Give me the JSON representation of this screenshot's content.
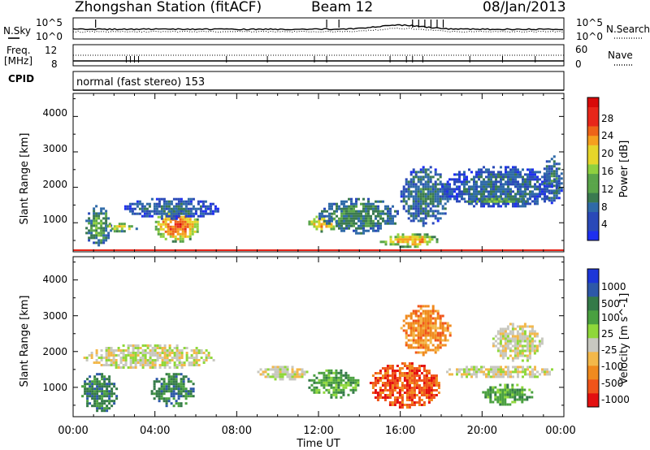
{
  "header": {
    "station": "Zhongshan Station (fitACF)",
    "beam": "Beam 12",
    "date": "08/Jan/2013"
  },
  "status_panel": {
    "nsky_label": "N.Sky",
    "nsearch_label": "N.Search",
    "noise_ticks_left": [
      "10^5",
      "10^0"
    ],
    "noise_ticks_right": [
      "10^5",
      "10^0"
    ],
    "freq_label_1": "Freq.",
    "freq_label_2": "[MHz]",
    "freq_ticks": [
      "12",
      "8"
    ],
    "nave_label": "Nave",
    "nave_ticks": [
      "60",
      "0"
    ],
    "cpid_label": "CPID",
    "cpid_value": "normal (fast stereo) 153"
  },
  "colors": {
    "power": [
      "#1e2ff0",
      "#2a49b8",
      "#2f6aa8",
      "#3a7a50",
      "#5aa54a",
      "#8fd03f",
      "#e6d62a",
      "#f5a01e",
      "#ee6418",
      "#e8261a",
      "#d80a0a"
    ],
    "velocity": [
      "#e31010",
      "#f0541a",
      "#f08a1e",
      "#f3b84a",
      "#c8c8c0",
      "#8fd83a",
      "#4aa040",
      "#347a48",
      "#2d58a8",
      "#1c36d8"
    ],
    "ground_scatter": "#c8c8c0"
  },
  "chart_data": [
    {
      "type": "heatmap",
      "title": "",
      "xlabel": "Time UT",
      "ylabel": "Slant Range [km]",
      "x_ticks": [
        "00:00",
        "04:00",
        "08:00",
        "12:00",
        "16:00",
        "20:00",
        "00:00"
      ],
      "y_ticks": [
        "1000",
        "2000",
        "3000",
        "4000"
      ],
      "ylim": [
        180,
        4650
      ],
      "colorbar_label": "Power [dB]",
      "colorbar_ticks": [
        "4",
        "8",
        "12",
        "16",
        "20",
        "24",
        "28"
      ],
      "clim": [
        0,
        30
      ],
      "regions": [
        {
          "t": [
            0.6,
            1.9
          ],
          "r": [
            300,
            1500
          ],
          "level": 12
        },
        {
          "t": [
            1.5,
            3.2
          ],
          "r": [
            750,
            1000
          ],
          "level": 18
        },
        {
          "t": [
            4.0,
            6.2
          ],
          "r": [
            450,
            1400
          ],
          "level": 26
        },
        {
          "t": [
            2.5,
            7.2
          ],
          "r": [
            1100,
            1700
          ],
          "level": 6
        },
        {
          "t": [
            11.5,
            13.0
          ],
          "r": [
            750,
            1200
          ],
          "level": 22
        },
        {
          "t": [
            12.0,
            16.0
          ],
          "r": [
            700,
            1700
          ],
          "level": 10
        },
        {
          "t": [
            15.0,
            18.0
          ],
          "r": [
            300,
            700
          ],
          "level": 22
        },
        {
          "t": [
            16.0,
            18.5
          ],
          "r": [
            900,
            2600
          ],
          "level": 8
        },
        {
          "t": [
            18.0,
            23.8
          ],
          "r": [
            1400,
            2600
          ],
          "level": 6
        },
        {
          "t": [
            19.0,
            22.5
          ],
          "r": [
            1550,
            1700
          ],
          "level": 14
        },
        {
          "t": [
            23.0,
            24.0
          ],
          "r": [
            1500,
            2900
          ],
          "level": 8
        }
      ]
    },
    {
      "type": "heatmap",
      "title": "",
      "xlabel": "Time UT",
      "ylabel": "Slant Range [km]",
      "x_ticks": [
        "00:00",
        "04:00",
        "08:00",
        "12:00",
        "16:00",
        "20:00",
        "00:00"
      ],
      "y_ticks": [
        "1000",
        "2000",
        "3000",
        "4000"
      ],
      "ylim": [
        180,
        4650
      ],
      "colorbar_label": "Velocity [m s^-1]",
      "colorbar_ticks": [
        "1000",
        "500",
        "100",
        "25",
        "-25",
        "-100",
        "-500",
        "-1000"
      ],
      "clim": [
        -1200,
        1200
      ],
      "regions": [
        {
          "t": [
            0.4,
            2.2
          ],
          "r": [
            300,
            1400
          ],
          "level": 250
        },
        {
          "t": [
            3.8,
            6.0
          ],
          "r": [
            450,
            1400
          ],
          "level": 180
        },
        {
          "t": [
            0.5,
            7.0
          ],
          "r": [
            1500,
            2200
          ],
          "level": 0
        },
        {
          "t": [
            9.0,
            11.5
          ],
          "r": [
            1200,
            1600
          ],
          "level": 0
        },
        {
          "t": [
            11.5,
            14.0
          ],
          "r": [
            700,
            1500
          ],
          "level": 80
        },
        {
          "t": [
            14.5,
            18.0
          ],
          "r": [
            400,
            1700
          ],
          "level": -150
        },
        {
          "t": [
            16.0,
            18.5
          ],
          "r": [
            1900,
            3300
          ],
          "level": -80
        },
        {
          "t": [
            18.0,
            23.8
          ],
          "r": [
            1250,
            1600
          ],
          "level": 0
        },
        {
          "t": [
            20.5,
            23.0
          ],
          "r": [
            1700,
            2800
          ],
          "level": 0
        },
        {
          "t": [
            20.0,
            22.5
          ],
          "r": [
            500,
            1100
          ],
          "level": 70
        }
      ]
    }
  ]
}
